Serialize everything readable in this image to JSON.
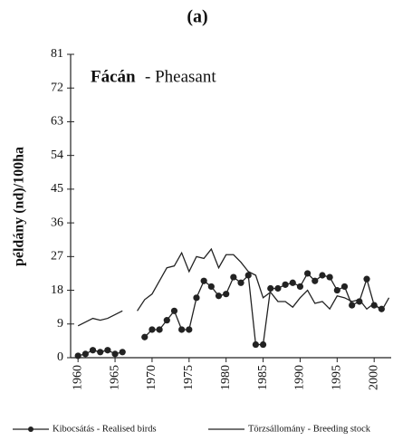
{
  "chart_data": {
    "type": "line",
    "title": "(a)",
    "inset_title": "Fácán",
    "inset_subtitle": "- Pheasant",
    "y_label": "példány (nd)/100ha",
    "x": [
      1960,
      1961,
      1962,
      1963,
      1964,
      1965,
      1966,
      1967,
      1968,
      1969,
      1970,
      1971,
      1972,
      1973,
      1974,
      1975,
      1976,
      1977,
      1978,
      1979,
      1980,
      1981,
      1982,
      1983,
      1984,
      1985,
      1986,
      1987,
      1988,
      1989,
      1990,
      1991,
      1992,
      1993,
      1994,
      1995,
      1996,
      1997,
      1998,
      1999,
      2000,
      2001,
      2002
    ],
    "series": [
      {
        "name": "Kibocsátás - Realised birds",
        "color": "#222",
        "markers": true,
        "values": [
          0.5,
          1,
          2,
          1.5,
          2,
          1,
          1.5,
          null,
          null,
          5.5,
          7.5,
          7.5,
          10,
          12.5,
          7.5,
          7.5,
          16,
          20.5,
          19,
          16.5,
          17,
          21.5,
          20,
          22,
          3.5,
          3.5,
          18.5,
          18.5,
          19.5,
          20,
          19,
          22.5,
          20.5,
          22,
          21.5,
          18,
          19,
          14,
          15,
          21,
          14,
          13,
          null
        ]
      },
      {
        "name": "Törzsállomány - Breeding stock",
        "color": "#222",
        "markers": false,
        "values": [
          8.5,
          9.5,
          10.5,
          10,
          10.5,
          11.5,
          12.5,
          null,
          12.5,
          15.5,
          17,
          20.5,
          24,
          24.5,
          28,
          23,
          27,
          26.5,
          29,
          24,
          27.5,
          27.5,
          25.5,
          23,
          22,
          16,
          17.5,
          15,
          15,
          13.5,
          16,
          18,
          14.5,
          15,
          13,
          16.5,
          16,
          15,
          15.5,
          13,
          14.5,
          12.5,
          16
        ]
      }
    ],
    "xlim": [
      1959,
      2002.3
    ],
    "xticks": [
      1960,
      1965,
      1970,
      1975,
      1980,
      1985,
      1990,
      1995,
      2000
    ],
    "ylim": [
      0,
      81
    ],
    "yticks": [
      0,
      9,
      18,
      27,
      36,
      45,
      54,
      63,
      72,
      81
    ],
    "grid": false
  }
}
